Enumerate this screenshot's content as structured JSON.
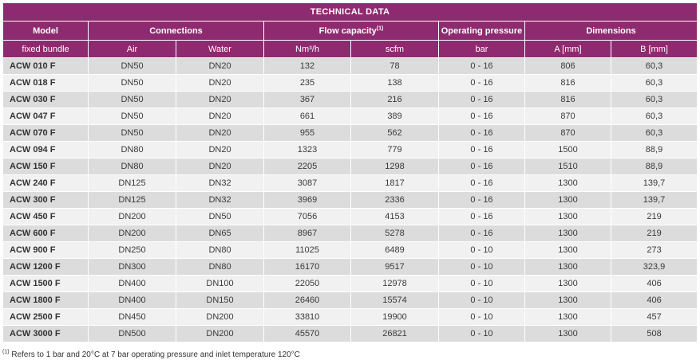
{
  "title": "TECHNICAL DATA",
  "headers": {
    "model": "Model",
    "connections": "Connections",
    "flow_capacity": "Flow capacity",
    "flow_sup": "(1)",
    "operating_pressure": "Operating pressure",
    "dimensions": "Dimensions"
  },
  "subheaders": {
    "model": "fixed bundle",
    "air": "Air",
    "water": "Water",
    "nm3h": "Nm³/h",
    "scfm": "scfm",
    "bar": "bar",
    "a_mm": "A [mm]",
    "b_mm": "B [mm]"
  },
  "rows": [
    {
      "model": "ACW 010 F",
      "air": "DN50",
      "water": "DN20",
      "nm3h": "132",
      "scfm": "78",
      "bar": "0 - 16",
      "a": "806",
      "b": "60,3"
    },
    {
      "model": "ACW 018 F",
      "air": "DN50",
      "water": "DN20",
      "nm3h": "235",
      "scfm": "138",
      "bar": "0 - 16",
      "a": "816",
      "b": "60,3"
    },
    {
      "model": "ACW 030 F",
      "air": "DN50",
      "water": "DN20",
      "nm3h": "367",
      "scfm": "216",
      "bar": "0 - 16",
      "a": "816",
      "b": "60,3"
    },
    {
      "model": "ACW 047 F",
      "air": "DN50",
      "water": "DN20",
      "nm3h": "661",
      "scfm": "389",
      "bar": "0 - 16",
      "a": "870",
      "b": "60,3"
    },
    {
      "model": "ACW 070 F",
      "air": "DN50",
      "water": "DN20",
      "nm3h": "955",
      "scfm": "562",
      "bar": "0 - 16",
      "a": "870",
      "b": "60,3"
    },
    {
      "model": "ACW 094 F",
      "air": "DN80",
      "water": "DN20",
      "nm3h": "1323",
      "scfm": "779",
      "bar": "0 - 16",
      "a": "1500",
      "b": "88,9"
    },
    {
      "model": "ACW 150 F",
      "air": "DN80",
      "water": "DN20",
      "nm3h": "2205",
      "scfm": "1298",
      "bar": "0 - 16",
      "a": "1510",
      "b": "88,9"
    },
    {
      "model": "ACW 240 F",
      "air": "DN125",
      "water": "DN32",
      "nm3h": "3087",
      "scfm": "1817",
      "bar": "0 - 16",
      "a": "1300",
      "b": "139,7"
    },
    {
      "model": "ACW 300 F",
      "air": "DN125",
      "water": "DN32",
      "nm3h": "3969",
      "scfm": "2336",
      "bar": "0 - 16",
      "a": "1300",
      "b": "139,7"
    },
    {
      "model": "ACW 450 F",
      "air": "DN200",
      "water": "DN50",
      "nm3h": "7056",
      "scfm": "4153",
      "bar": "0 - 16",
      "a": "1300",
      "b": "219"
    },
    {
      "model": "ACW 600 F",
      "air": "DN200",
      "water": "DN65",
      "nm3h": "8967",
      "scfm": "5278",
      "bar": "0 - 16",
      "a": "1300",
      "b": "219"
    },
    {
      "model": "ACW 900 F",
      "air": "DN250",
      "water": "DN80",
      "nm3h": "11025",
      "scfm": "6489",
      "bar": "0 - 10",
      "a": "1300",
      "b": "273"
    },
    {
      "model": "ACW 1200 F",
      "air": "DN300",
      "water": "DN80",
      "nm3h": "16170",
      "scfm": "9517",
      "bar": "0 - 10",
      "a": "1300",
      "b": "323,9"
    },
    {
      "model": "ACW 1500 F",
      "air": "DN400",
      "water": "DN100",
      "nm3h": "22050",
      "scfm": "12978",
      "bar": "0 - 10",
      "a": "1300",
      "b": "406"
    },
    {
      "model": "ACW 1800 F",
      "air": "DN400",
      "water": "DN150",
      "nm3h": "26460",
      "scfm": "15574",
      "bar": "0 - 10",
      "a": "1300",
      "b": "406"
    },
    {
      "model": "ACW 2500 F",
      "air": "DN450",
      "water": "DN200",
      "nm3h": "33810",
      "scfm": "19900",
      "bar": "0 - 10",
      "a": "1300",
      "b": "457"
    },
    {
      "model": "ACW 3000 F",
      "air": "DN500",
      "water": "DN200",
      "nm3h": "45570",
      "scfm": "26821",
      "bar": "0 - 10",
      "a": "1300",
      "b": "508"
    }
  ],
  "footnote": {
    "marker": "(1)",
    "text": " Refers to 1 bar and 20°C at 7 bar operating pressure and inlet temperature 120°C"
  },
  "colors": {
    "header_bg": "#8e2a6f",
    "row_dark": "#dcdcdc",
    "row_light": "#f1f1f1"
  }
}
